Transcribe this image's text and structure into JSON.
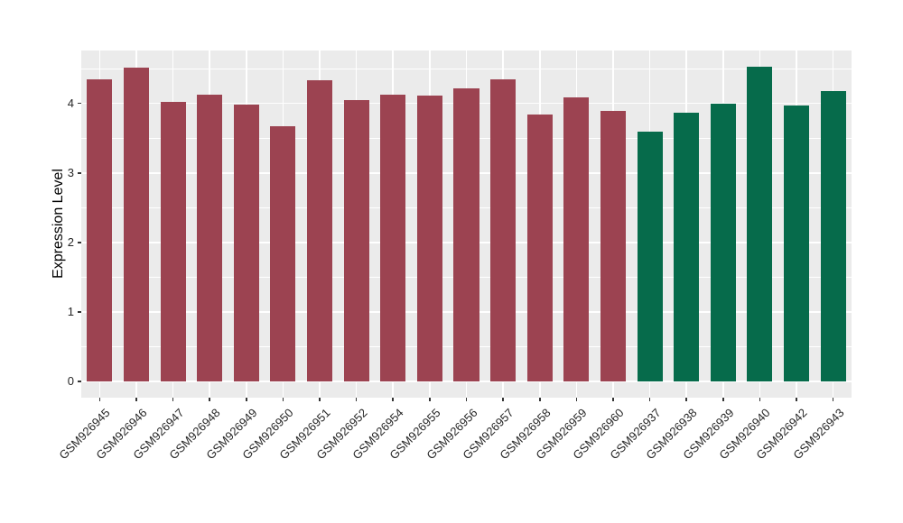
{
  "chart_data": {
    "type": "bar",
    "title": "",
    "xlabel": "",
    "ylabel": "Expression Level",
    "categories": [
      "GSM926945",
      "GSM926946",
      "GSM926947",
      "GSM926948",
      "GSM926949",
      "GSM926950",
      "GSM926951",
      "GSM926952",
      "GSM926954",
      "GSM926955",
      "GSM926956",
      "GSM926957",
      "GSM926958",
      "GSM926959",
      "GSM926960",
      "GSM926937",
      "GSM926938",
      "GSM926939",
      "GSM926940",
      "GSM926942",
      "GSM926943"
    ],
    "values": [
      4.34,
      4.51,
      4.02,
      4.12,
      3.98,
      3.67,
      4.33,
      4.05,
      4.12,
      4.11,
      4.21,
      4.34,
      3.84,
      4.09,
      3.89,
      3.59,
      3.87,
      3.99,
      4.53,
      3.97,
      4.18
    ],
    "colors": [
      "#9C4351",
      "#9C4351",
      "#9C4351",
      "#9C4351",
      "#9C4351",
      "#9C4351",
      "#9C4351",
      "#9C4351",
      "#9C4351",
      "#9C4351",
      "#9C4351",
      "#9C4351",
      "#9C4351",
      "#9C4351",
      "#9C4351",
      "#066B4B",
      "#066B4B",
      "#066B4B",
      "#066B4B",
      "#066B4B",
      "#066B4B"
    ],
    "color_groups": [
      {
        "color": "#9C4351",
        "count": 15
      },
      {
        "color": "#066B4B",
        "count": 6
      }
    ],
    "yticks": [
      0,
      1,
      2,
      3,
      4
    ],
    "yticks_minor": [
      0.5,
      1.5,
      2.5,
      3.5,
      4.5
    ],
    "ylim": [
      -0.23,
      4.76
    ],
    "grid": true,
    "legend": false,
    "panel_bg": "#EBEBEB",
    "grid_color": "#FFFFFF",
    "bar_width_ratio": 0.69
  }
}
